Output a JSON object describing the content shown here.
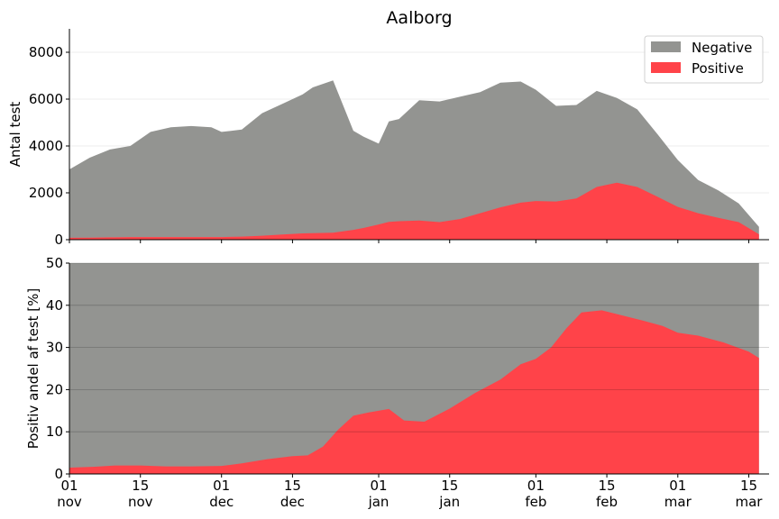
{
  "chart_data": [
    {
      "type": "area",
      "stacked": true,
      "title": "Aalborg",
      "xlabel": "",
      "ylabel": "Antal test",
      "xlim": [
        "2021-11-01",
        "2022-03-19"
      ],
      "ylim": [
        0,
        9000
      ],
      "yticks": [
        0,
        2000,
        4000,
        6000,
        8000
      ],
      "grid": "horizontal",
      "legend": {
        "placement": "top-right",
        "entries": [
          "Negative",
          "Positive"
        ]
      },
      "colors": {
        "Negative": "#939491",
        "Positive": "#ff4349"
      },
      "x": [
        "2021-11-01",
        "2021-11-05",
        "2021-11-09",
        "2021-11-13",
        "2021-11-17",
        "2021-11-21",
        "2021-11-25",
        "2021-11-29",
        "2021-12-01",
        "2021-12-05",
        "2021-12-09",
        "2021-12-13",
        "2021-12-17",
        "2021-12-19",
        "2021-12-23",
        "2021-12-27",
        "2021-12-29",
        "2022-01-01",
        "2022-01-03",
        "2022-01-05",
        "2022-01-09",
        "2022-01-13",
        "2022-01-17",
        "2022-01-21",
        "2022-01-25",
        "2022-01-29",
        "2022-02-01",
        "2022-02-05",
        "2022-02-09",
        "2022-02-13",
        "2022-02-17",
        "2022-02-21",
        "2022-02-25",
        "2022-03-01",
        "2022-03-05",
        "2022-03-09",
        "2022-03-13",
        "2022-03-17"
      ],
      "series": [
        {
          "name": "Positive",
          "values": [
            80,
            90,
            100,
            110,
            110,
            110,
            110,
            110,
            110,
            130,
            170,
            220,
            270,
            280,
            300,
            420,
            500,
            650,
            760,
            790,
            820,
            750,
            880,
            1130,
            1380,
            1580,
            1650,
            1630,
            1760,
            2250,
            2430,
            2250,
            1830,
            1400,
            1130,
            930,
            750,
            230
          ]
        },
        {
          "name": "Negative",
          "values": [
            2920,
            3410,
            3750,
            3890,
            4490,
            4690,
            4740,
            4690,
            4490,
            4570,
            5230,
            5580,
            5930,
            6220,
            6500,
            4230,
            3900,
            3450,
            4290,
            4360,
            5130,
            5150,
            5220,
            5170,
            5320,
            5170,
            4750,
            4080,
            3990,
            4100,
            3620,
            3310,
            2670,
            2000,
            1420,
            1170,
            800,
            320
          ]
        }
      ]
    },
    {
      "type": "area",
      "stacked": true,
      "title": "",
      "xlabel": "",
      "ylabel": "Positiv andel af test [%]",
      "xlim": [
        "2021-11-01",
        "2022-03-19"
      ],
      "ylim": [
        0,
        50
      ],
      "yticks": [
        0,
        10,
        20,
        30,
        40,
        50
      ],
      "grid": "horizontal",
      "colors": {
        "background_series": "#939491",
        "Positive": "#ff4349"
      },
      "xticks": [
        {
          "date": "2021-11-01",
          "day": "01",
          "month": "nov"
        },
        {
          "date": "2021-11-15",
          "day": "15",
          "month": "nov"
        },
        {
          "date": "2021-12-01",
          "day": "01",
          "month": "dec"
        },
        {
          "date": "2021-12-15",
          "day": "15",
          "month": "dec"
        },
        {
          "date": "2022-01-01",
          "day": "01",
          "month": "jan"
        },
        {
          "date": "2022-01-15",
          "day": "15",
          "month": "jan"
        },
        {
          "date": "2022-02-01",
          "day": "01",
          "month": "feb"
        },
        {
          "date": "2022-02-15",
          "day": "15",
          "month": "feb"
        },
        {
          "date": "2022-03-01",
          "day": "01",
          "month": "mar"
        },
        {
          "date": "2022-03-15",
          "day": "15",
          "month": "mar"
        }
      ],
      "x": [
        "2021-11-01",
        "2021-11-06",
        "2021-11-10",
        "2021-11-15",
        "2021-11-20",
        "2021-11-25",
        "2021-12-01",
        "2021-12-05",
        "2021-12-10",
        "2021-12-15",
        "2021-12-18",
        "2021-12-21",
        "2021-12-24",
        "2021-12-27",
        "2021-12-30",
        "2022-01-03",
        "2022-01-06",
        "2022-01-10",
        "2022-01-15",
        "2022-01-20",
        "2022-01-25",
        "2022-01-29",
        "2022-02-01",
        "2022-02-04",
        "2022-02-07",
        "2022-02-10",
        "2022-02-14",
        "2022-02-18",
        "2022-02-22",
        "2022-02-26",
        "2022-03-01",
        "2022-03-05",
        "2022-03-10",
        "2022-03-15",
        "2022-03-17"
      ],
      "series": [
        {
          "name": "Total",
          "values": [
            50,
            50,
            50,
            50,
            50,
            50,
            50,
            50,
            50,
            50,
            50,
            50,
            50,
            50,
            50,
            50,
            50,
            50,
            50,
            50,
            50,
            50,
            50,
            50,
            50,
            50,
            50,
            50,
            50,
            50,
            50,
            50,
            50,
            50,
            50
          ]
        },
        {
          "name": "Positive",
          "values": [
            1.5,
            1.7,
            2.0,
            2.0,
            1.8,
            1.8,
            1.9,
            2.5,
            3.5,
            4.2,
            4.4,
            6.5,
            10.5,
            13.8,
            14.6,
            15.4,
            12.7,
            12.4,
            15.5,
            19.2,
            22.4,
            26.0,
            27.3,
            30.0,
            34.5,
            38.3,
            38.8,
            37.6,
            36.4,
            35.1,
            33.5,
            32.8,
            31.2,
            29.0,
            27.5
          ]
        }
      ]
    }
  ]
}
